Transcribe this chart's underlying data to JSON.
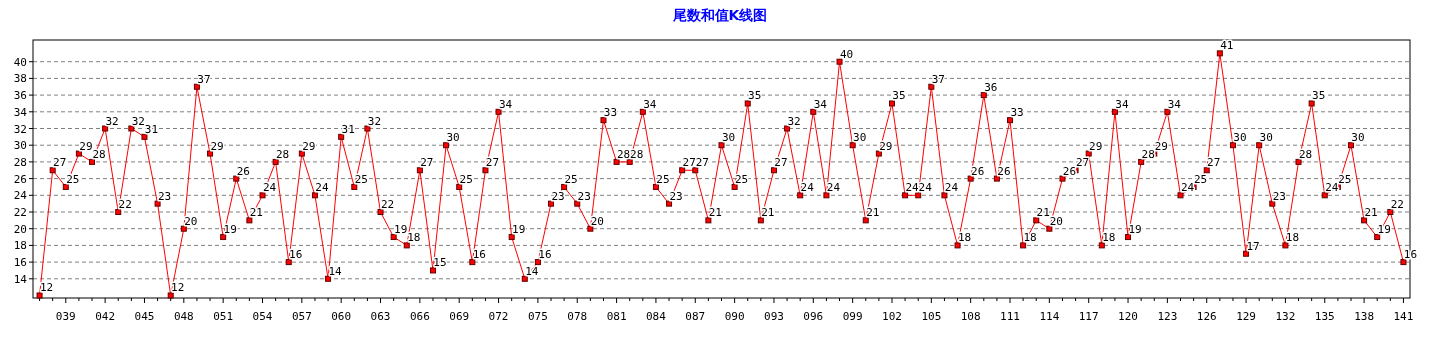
{
  "chart_data": {
    "type": "line",
    "title": "尾数和值K线图",
    "categories": [
      null,
      null,
      "039",
      null,
      null,
      "042",
      null,
      null,
      "045",
      null,
      null,
      "048",
      null,
      null,
      "051",
      null,
      null,
      "054",
      null,
      null,
      "057",
      null,
      null,
      "060",
      null,
      null,
      "063",
      null,
      null,
      "066",
      null,
      null,
      "069",
      null,
      null,
      "072",
      null,
      null,
      "075",
      null,
      null,
      "078",
      null,
      null,
      "081",
      null,
      null,
      "084",
      null,
      null,
      "087",
      null,
      null,
      "090",
      null,
      null,
      "093",
      null,
      null,
      "096",
      null,
      null,
      "099",
      null,
      null,
      "102",
      null,
      null,
      "105",
      null,
      null,
      "108",
      null,
      null,
      "111",
      null,
      null,
      "114",
      null,
      null,
      "117",
      null,
      null,
      "120",
      null,
      null,
      "123",
      null,
      null,
      "126",
      null,
      null,
      "129",
      null,
      null,
      "132",
      null,
      null,
      "135",
      null,
      null,
      "138",
      null,
      null,
      "141"
    ],
    "series": [
      {
        "color": "#ff0000",
        "values": [
          12,
          27,
          25,
          29,
          28,
          32,
          22,
          32,
          31,
          23,
          12,
          20,
          37,
          29,
          19,
          26,
          21,
          24,
          28,
          16,
          29,
          24,
          14,
          31,
          25,
          32,
          22,
          19,
          18,
          27,
          15,
          30,
          25,
          16,
          27,
          34,
          19,
          14,
          16,
          23,
          25,
          23,
          20,
          33,
          28,
          28,
          34,
          25,
          23,
          27,
          27,
          21,
          30,
          25,
          35,
          21,
          27,
          32,
          24,
          34,
          24,
          40,
          30,
          21,
          29,
          35,
          24,
          24,
          37,
          24,
          18,
          26,
          36,
          26,
          33,
          18,
          21,
          20,
          26,
          27,
          29,
          18,
          34,
          19,
          28,
          29,
          34,
          24,
          25,
          27,
          41,
          30,
          17,
          30,
          23,
          18,
          28,
          35,
          24,
          25,
          30,
          21,
          19,
          22,
          16
        ]
      }
    ],
    "ylim": [
      11.7,
      42.6
    ],
    "yticks": [
      14,
      16,
      18,
      20,
      22,
      24,
      26,
      28,
      30,
      32,
      34,
      36,
      38,
      40
    ],
    "grid": "y",
    "marker": "square",
    "line_style": "solid",
    "data_labels": true
  }
}
